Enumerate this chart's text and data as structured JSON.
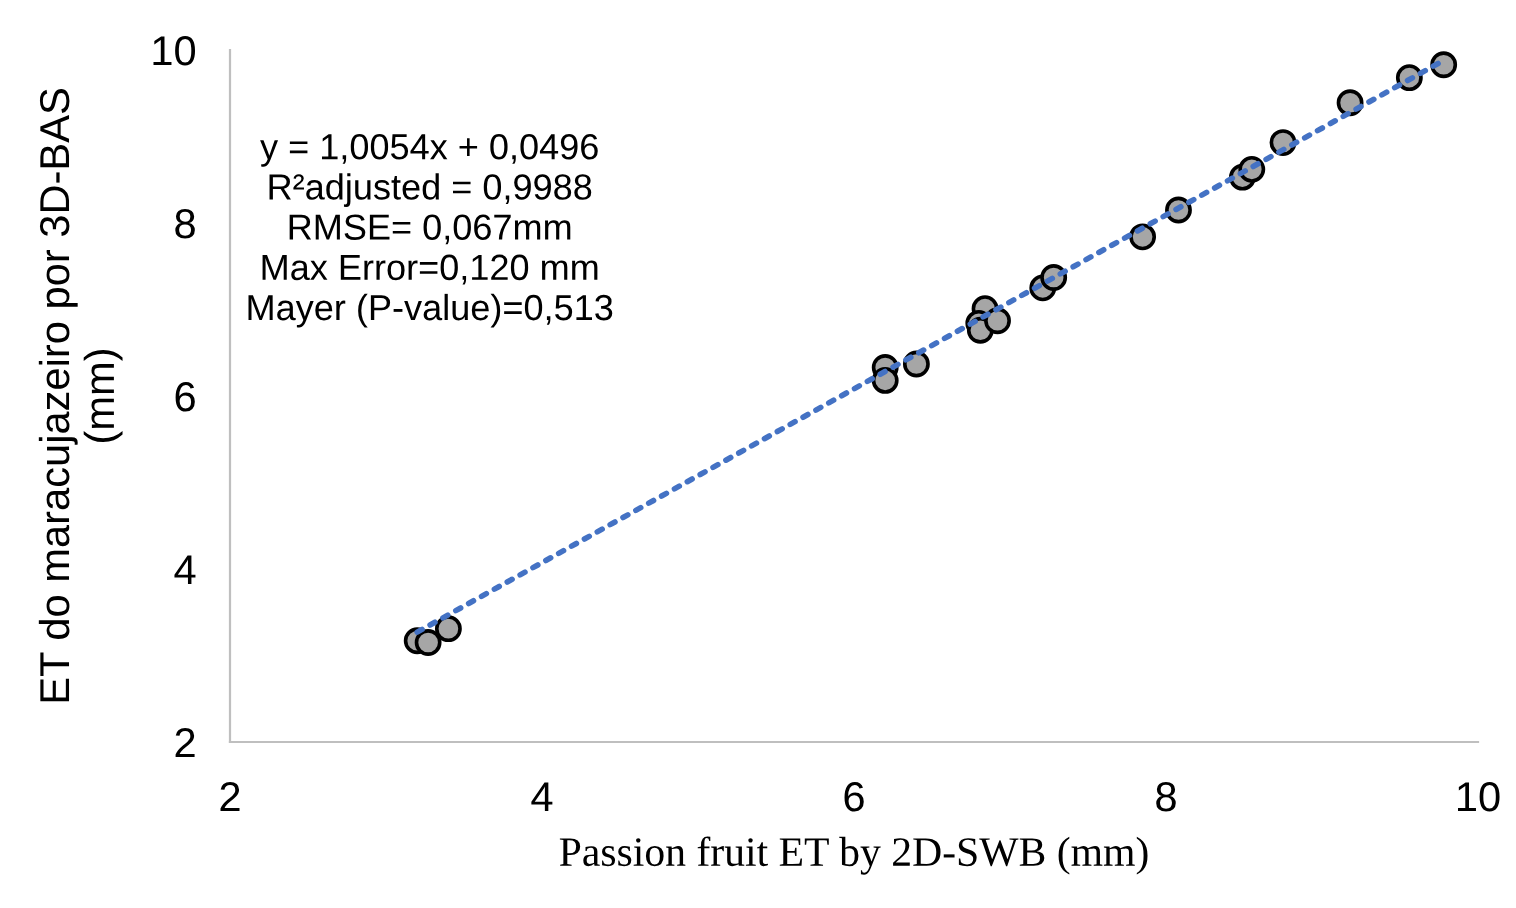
{
  "chart_data": {
    "type": "scatter",
    "xlabel": "Passion fruit ET by 2D-SWB (mm)",
    "ylabel": "ET do maracujazeiro por 3D-BAS\n(mm)",
    "xlim": [
      2,
      10
    ],
    "ylim": [
      2,
      10
    ],
    "xticks": [
      2,
      4,
      6,
      8,
      10
    ],
    "yticks": [
      2,
      4,
      6,
      8,
      10
    ],
    "grid": false,
    "annotations": [
      "y = 1,0054x + 0,0496\nR²adjusted = 0,9988\nRMSE= 0,067mm\nMax Error=0,120 mm\nMayer (P-value)=0,513"
    ],
    "series": [
      {
        "color": "#a6a6a6",
        "marker": "circle",
        "x": [
          3.2,
          3.27,
          3.4,
          6.2,
          6.2,
          6.4,
          6.84,
          6.8,
          6.81,
          6.92,
          7.21,
          7.28,
          7.85,
          8.08,
          8.49,
          8.55,
          8.75,
          9.18,
          9.56,
          9.78
        ],
        "values": [
          3.17,
          3.15,
          3.31,
          6.33,
          6.18,
          6.37,
          7.01,
          6.84,
          6.76,
          6.87,
          7.25,
          7.37,
          7.84,
          8.15,
          8.53,
          8.62,
          8.93,
          9.39,
          9.68,
          9.83
        ]
      },
      {
        "type": "line",
        "color": "#4472c4",
        "line_style": "dotted",
        "marker": "none",
        "x": [
          3.2,
          9.78
        ],
        "values": [
          3.27,
          9.88
        ]
      }
    ]
  }
}
